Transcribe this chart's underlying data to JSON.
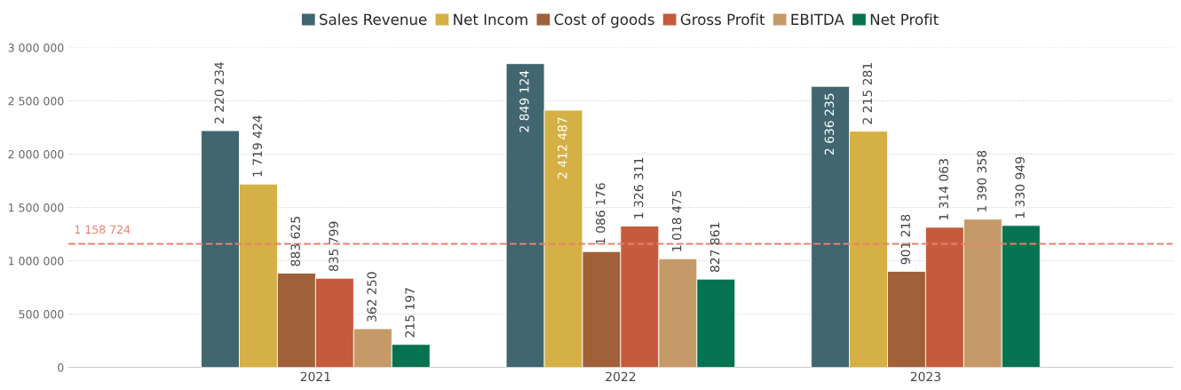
{
  "chart_data": {
    "type": "bar",
    "categories": [
      "2021",
      "2022",
      "2023"
    ],
    "series": [
      {
        "name": "Sales Revenue",
        "color": "#41666f",
        "values": [
          2220234,
          2849124,
          2636235
        ],
        "value_labels": [
          "2 220 234",
          "2 849 124",
          "2 636 235"
        ]
      },
      {
        "name": "Net Incom",
        "color": "#d4b045",
        "values": [
          1719424,
          2412487,
          2215281
        ],
        "value_labels": [
          "1 719 424",
          "2 412 487",
          "2 215 281"
        ]
      },
      {
        "name": "Cost of goods",
        "color": "#a0603a",
        "values": [
          883625,
          1086176,
          901218
        ],
        "value_labels": [
          "883 625",
          "1 086 176",
          "901 218"
        ]
      },
      {
        "name": "Gross Profit",
        "color": "#c55a3c",
        "values": [
          835799,
          1326311,
          1314063
        ],
        "value_labels": [
          "835 799",
          "1 326 311",
          "1 314 063"
        ]
      },
      {
        "name": "EBITDA",
        "color": "#c59a68",
        "values": [
          362250,
          1018475,
          1390358
        ],
        "value_labels": [
          "362 250",
          "1 018 475",
          "1 390 358"
        ]
      },
      {
        "name": "Net Profit",
        "color": "#067350",
        "values": [
          215197,
          827861,
          1330949
        ],
        "value_labels": [
          "215 197",
          "827 861",
          "1 330 949"
        ]
      }
    ],
    "ylim": [
      0,
      3000000
    ],
    "yticks": [
      {
        "value": 0,
        "label": "0"
      },
      {
        "value": 500000,
        "label": "500 000"
      },
      {
        "value": 1000000,
        "label": "1 000 000"
      },
      {
        "value": 1500000,
        "label": "1 500 000"
      },
      {
        "value": 2000000,
        "label": "2 000 000"
      },
      {
        "value": 2500000,
        "label": "2 500 000"
      },
      {
        "value": 3000000,
        "label": "3 000 000"
      }
    ],
    "ref_lines": [
      {
        "axis": "y",
        "value": 1158724,
        "label": "1 158 724",
        "color": "#e8816e",
        "line_style": "dashed"
      }
    ],
    "grid": "y",
    "legend": "top"
  }
}
